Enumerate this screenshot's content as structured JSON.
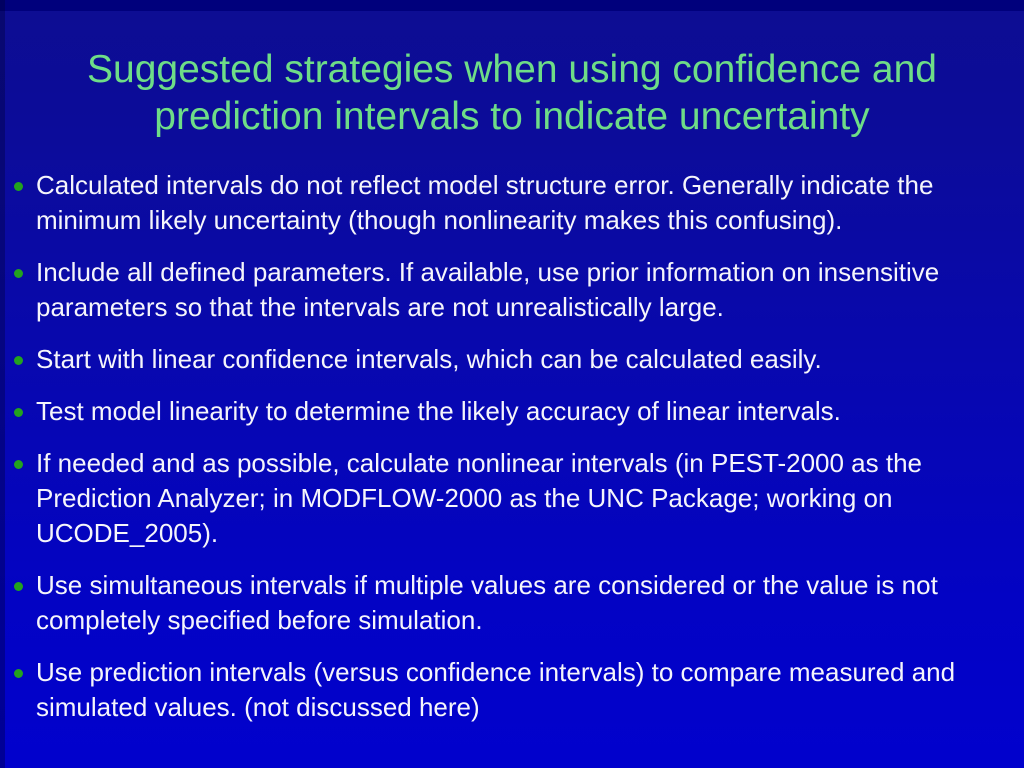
{
  "slide": {
    "title_lines": [
      "Suggested strategies when using confidence and",
      "prediction intervals to indicate uncertainty"
    ],
    "bullets": [
      "Calculated intervals do not reflect model structure error. Generally indicate the minimum likely uncertainty (though nonlinearity makes this confusing).",
      "Include all defined parameters. If available, use prior information on insensitive parameters so that the intervals are not unrealistically large.",
      "Start with linear confidence intervals, which can be calculated easily.",
      "Test model linearity to determine the likely accuracy of linear intervals.",
      "If needed and as possible, calculate nonlinear intervals (in PEST-2000 as the Prediction Analyzer; in MODFLOW-2000 as the UNC Package; working on UCODE_2005).",
      "Use simultaneous intervals if multiple values are considered or the value is not completely specified before simulation.",
      "Use prediction intervals (versus confidence intervals) to compare measured and simulated values. (not discussed here)"
    ],
    "colors": {
      "title_green": "#6edd87",
      "bullet_green": "#23a31f",
      "body_text": "#f5f5fb",
      "background_top": "#0d0d92",
      "background_bottom": "#0101cd"
    }
  }
}
